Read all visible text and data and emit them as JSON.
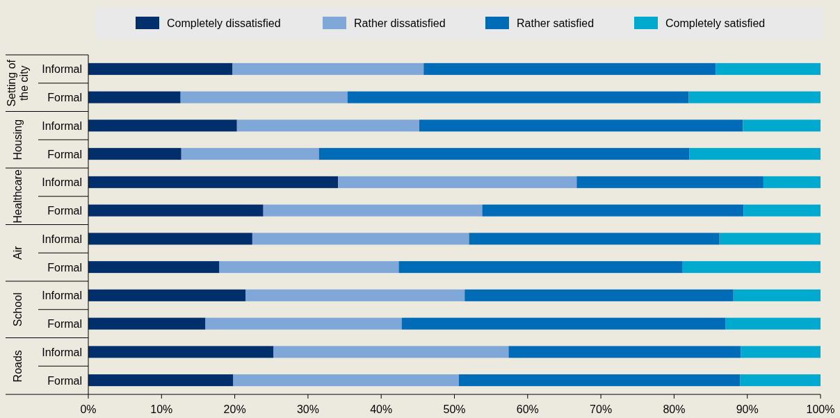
{
  "chart_data": {
    "type": "bar",
    "orientation": "horizontal",
    "stacked": true,
    "legend": "top",
    "categories": [
      "Informal",
      "Formal",
      "Informal",
      "Formal",
      "Informal",
      "Formal",
      "Informal",
      "Formal",
      "Informal",
      "Formal",
      "Informal",
      "Formal"
    ],
    "annotations": [
      "Setting of the city",
      "Housing",
      "Healthcare",
      "Air",
      "School",
      "Roads"
    ],
    "series": [
      {
        "name": "Completely dissatisfied",
        "color": "#002f6c",
        "values": [
          19.7,
          12.6,
          20.3,
          12.7,
          34.1,
          23.9,
          22.4,
          17.9,
          21.5,
          16.0,
          25.3,
          19.8
        ]
      },
      {
        "name": "Rather dissatisfied",
        "color": "#7fa8d9",
        "values": [
          26.1,
          22.8,
          24.9,
          18.8,
          32.6,
          29.9,
          29.6,
          24.5,
          29.9,
          26.8,
          32.1,
          30.8
        ]
      },
      {
        "name": "Rather satisfied",
        "color": "#006bb6",
        "values": [
          39.9,
          46.6,
          44.2,
          50.6,
          25.5,
          35.7,
          34.2,
          38.7,
          36.7,
          44.2,
          31.7,
          38.4
        ]
      },
      {
        "name": "Completely satisfied",
        "color": "#00a9ce",
        "values": [
          14.3,
          18.0,
          10.6,
          17.9,
          7.8,
          10.5,
          13.8,
          18.9,
          11.9,
          13.0,
          10.9,
          11.0
        ]
      }
    ],
    "xlim": [
      0,
      100
    ],
    "xticks": [
      {
        "value": 0,
        "label": "0%"
      },
      {
        "value": 10,
        "label": "10%"
      },
      {
        "value": 20,
        "label": "20%"
      },
      {
        "value": 30,
        "label": "30%"
      },
      {
        "value": 40,
        "label": "40%"
      },
      {
        "value": 50,
        "label": "50%"
      },
      {
        "value": 60,
        "label": "60%"
      },
      {
        "value": 70,
        "label": "70%"
      },
      {
        "value": 80,
        "label": "80%"
      },
      {
        "value": 90,
        "label": "90%"
      },
      {
        "value": 100,
        "label": "100%"
      }
    ]
  }
}
